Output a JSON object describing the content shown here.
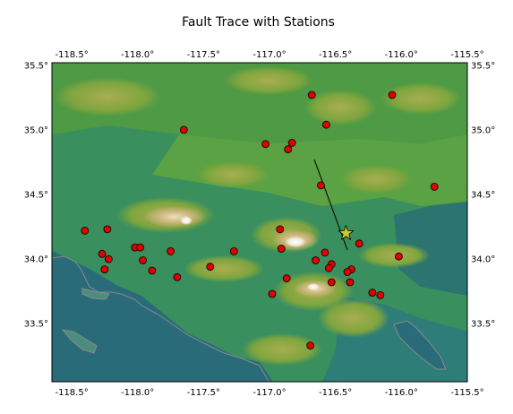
{
  "title": "Fault Trace with Stations",
  "chart_data": {
    "type": "map",
    "title": "Fault Trace with Stations",
    "xlim": [
      -118.65,
      -115.5
    ],
    "ylim": [
      33.05,
      35.52
    ],
    "lon_ticks": [
      -118.5,
      -118.0,
      -117.5,
      -117.0,
      -116.5,
      -116.0,
      -115.5
    ],
    "lat_ticks": [
      33.5,
      34.0,
      34.5,
      35.0,
      35.5
    ],
    "lon_tick_labels": [
      "-118.5°",
      "-118.0°",
      "-117.5°",
      "-117.0°",
      "-116.5°",
      "-116.0°",
      "-115.5°"
    ],
    "lat_tick_labels": [
      "33.5°",
      "34.0°",
      "34.5°",
      "35.0°",
      "35.5°"
    ],
    "lon_labels_position": [
      "top",
      "bottom"
    ],
    "lat_labels_position": [
      "left",
      "right"
    ],
    "background": "shaded-relief elevation raster",
    "fault_trace": {
      "color": "#000000",
      "points": [
        [
          -116.66,
          34.77
        ],
        [
          -116.41,
          34.07
        ]
      ]
    },
    "epicenter": {
      "lon": -116.42,
      "lat": 34.2,
      "marker": "star",
      "color": "#c8c832"
    },
    "station_color": "#e00000",
    "stations": [
      [
        -116.68,
        35.27
      ],
      [
        -116.07,
        35.27
      ],
      [
        -117.65,
        35.0
      ],
      [
        -116.57,
        35.04
      ],
      [
        -117.03,
        34.89
      ],
      [
        -116.83,
        34.9
      ],
      [
        -116.86,
        34.85
      ],
      [
        -116.61,
        34.57
      ],
      [
        -115.75,
        34.56
      ],
      [
        -118.4,
        34.22
      ],
      [
        -118.23,
        34.23
      ],
      [
        -116.92,
        34.23
      ],
      [
        -116.32,
        34.12
      ],
      [
        -118.02,
        34.09
      ],
      [
        -117.98,
        34.09
      ],
      [
        -116.91,
        34.08
      ],
      [
        -118.27,
        34.04
      ],
      [
        -117.75,
        34.06
      ],
      [
        -117.27,
        34.06
      ],
      [
        -116.58,
        34.05
      ],
      [
        -116.02,
        34.02
      ],
      [
        -118.22,
        34.0
      ],
      [
        -117.96,
        33.99
      ],
      [
        -116.65,
        33.99
      ],
      [
        -116.53,
        33.96
      ],
      [
        -118.25,
        33.92
      ],
      [
        -117.89,
        33.91
      ],
      [
        -117.45,
        33.94
      ],
      [
        -116.55,
        33.93
      ],
      [
        -116.38,
        33.92
      ],
      [
        -116.41,
        33.9
      ],
      [
        -117.7,
        33.86
      ],
      [
        -116.87,
        33.85
      ],
      [
        -116.53,
        33.82
      ],
      [
        -116.39,
        33.82
      ],
      [
        -116.98,
        33.73
      ],
      [
        -116.22,
        33.74
      ],
      [
        -116.16,
        33.72
      ],
      [
        -116.69,
        33.33
      ]
    ]
  }
}
